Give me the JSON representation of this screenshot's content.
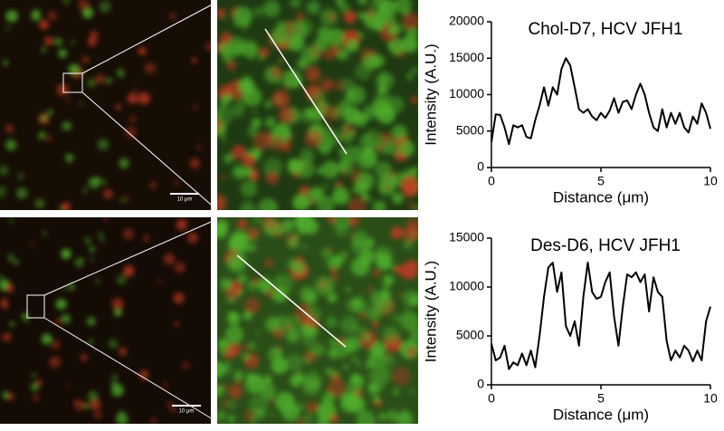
{
  "chart_data": [
    {
      "type": "line",
      "title": "Chol-D7, HCV JFH1",
      "x_label": "Distance (μm)",
      "y_label": "Intensity (A.U.)",
      "color": "#000000",
      "x": [
        0,
        0.2,
        0.4,
        0.6,
        0.8,
        1,
        1.2,
        1.4,
        1.6,
        1.8,
        2,
        2.2,
        2.4,
        2.6,
        2.8,
        3,
        3.2,
        3.4,
        3.6,
        3.8,
        4,
        4.2,
        4.4,
        4.6,
        4.8,
        5,
        5.2,
        5.4,
        5.6,
        5.8,
        6,
        6.2,
        6.4,
        6.6,
        6.8,
        7,
        7.2,
        7.4,
        7.6,
        7.8,
        8,
        8.2,
        8.4,
        8.6,
        8.8,
        9,
        9.2,
        9.4,
        9.6,
        9.8,
        10
      ],
      "values": [
        3500,
        7300,
        7200,
        5500,
        3200,
        5800,
        5500,
        5800,
        4200,
        4000,
        6500,
        8500,
        11000,
        8500,
        11000,
        10000,
        13500,
        15000,
        14000,
        11000,
        8000,
        7500,
        8000,
        7000,
        6500,
        7500,
        6800,
        7800,
        9500,
        7500,
        9000,
        9200,
        8000,
        10000,
        11500,
        10000,
        7500,
        5500,
        5000,
        8000,
        5500,
        7500,
        6000,
        7500,
        5500,
        4800,
        7000,
        6000,
        8800,
        7500,
        5300
      ],
      "xlim": [
        0,
        10
      ],
      "xticks": [
        0,
        5,
        10
      ],
      "ylim": [
        0,
        20000
      ],
      "yticks": [
        0,
        5000,
        10000,
        15000,
        20000
      ]
    },
    {
      "type": "line",
      "title": "Des-D6, HCV JFH1",
      "x_label": "Distance (μm)",
      "y_label": "Intensity (A.U.)",
      "color": "#000000",
      "x": [
        0,
        0.2,
        0.4,
        0.6,
        0.8,
        1,
        1.2,
        1.4,
        1.6,
        1.8,
        2,
        2.2,
        2.4,
        2.6,
        2.8,
        3,
        3.2,
        3.4,
        3.6,
        3.8,
        4,
        4.2,
        4.4,
        4.6,
        4.8,
        5,
        5.2,
        5.4,
        5.6,
        5.8,
        6,
        6.2,
        6.4,
        6.6,
        6.8,
        7,
        7.2,
        7.4,
        7.6,
        7.8,
        8,
        8.2,
        8.4,
        8.6,
        8.8,
        9,
        9.2,
        9.4,
        9.6,
        9.8,
        10
      ],
      "values": [
        4200,
        2500,
        2800,
        4000,
        1600,
        2300,
        2000,
        3200,
        2000,
        3500,
        1800,
        5000,
        9000,
        12000,
        12500,
        9500,
        11500,
        6000,
        5000,
        6500,
        4000,
        9000,
        12500,
        9500,
        8800,
        9000,
        10500,
        11500,
        7000,
        4000,
        8000,
        11300,
        11000,
        11500,
        10500,
        11300,
        7500,
        11000,
        9500,
        9000,
        4500,
        2500,
        3500,
        2800,
        4000,
        3500,
        2400,
        3500,
        2500,
        6500,
        8000
      ],
      "xlim": [
        0,
        10
      ],
      "xticks": [
        0,
        5,
        10
      ],
      "ylim": [
        0,
        15000
      ],
      "yticks": [
        0,
        5000,
        10000,
        15000
      ]
    }
  ],
  "panels": [
    {
      "scale_bar": "10 μm"
    },
    {
      "scale_bar": "10 μm"
    }
  ]
}
